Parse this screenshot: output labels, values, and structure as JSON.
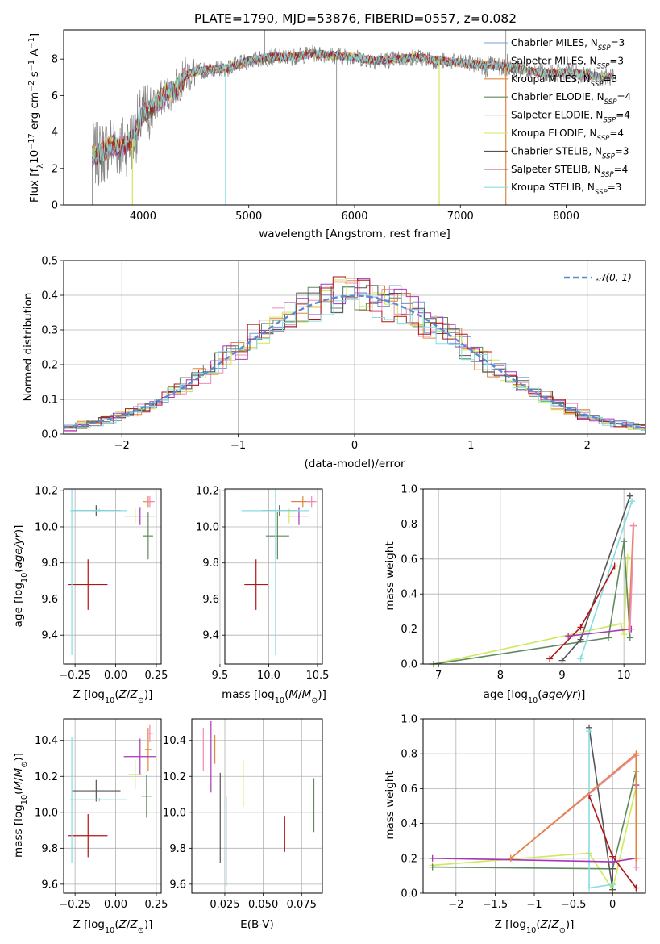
{
  "figure_title": "PLATE=1790, MJD=53876, FIBERID=0557, z=0.082",
  "legend_main": [
    {
      "label": "Chabrier MILES, N",
      "sub": "SSP",
      "tail": "=3",
      "color": "#7a9ddb"
    },
    {
      "label": "Salpeter MILES, N",
      "sub": "SSP",
      "tail": "=3",
      "color": "#f08ab6"
    },
    {
      "label": "Kroupa MILES, N",
      "sub": "SSP",
      "tail": "=3",
      "color": "#e0863a"
    },
    {
      "label": "Chabrier ELODIE, N",
      "sub": "SSP",
      "tail": "=4",
      "color": "#5e8a5e"
    },
    {
      "label": "Salpeter ELODIE, N",
      "sub": "SSP",
      "tail": "=4",
      "color": "#a637b5"
    },
    {
      "label": "Kroupa ELODIE, N",
      "sub": "SSP",
      "tail": "=4",
      "color": "#cfe85c"
    },
    {
      "label": "Chabrier STELIB, N",
      "sub": "SSP",
      "tail": "=3",
      "color": "#555555"
    },
    {
      "label": "Salpeter STELIB, N",
      "sub": "SSP",
      "tail": "=4",
      "color": "#b01515"
    },
    {
      "label": "Kroupa STELIB, N",
      "sub": "SSP",
      "tail": "=3",
      "color": "#86dde3"
    }
  ],
  "chart_data": [
    {
      "id": "spectrum",
      "type": "line",
      "title": "PLATE=1790, MJD=53876, FIBERID=0557, z=0.082",
      "xlabel": "wavelength [Angstrom, rest frame]",
      "ylabel": "Flux [f",
      "xlim": [
        3250,
        8750
      ],
      "ylim": [
        0,
        9.6
      ],
      "xticks": [
        4000,
        5000,
        6000,
        7000,
        8000
      ],
      "yticks": [
        0,
        2,
        4,
        6,
        8
      ],
      "continuum": {
        "x": [
          3520,
          3600,
          3700,
          3800,
          3900,
          4000,
          4100,
          4200,
          4300,
          4400,
          4500,
          4600,
          4800,
          5000,
          5200,
          5400,
          5600,
          5800,
          6000,
          6200,
          6400,
          6600,
          6800,
          7000,
          7200,
          7400,
          7600,
          7800,
          8000,
          8200,
          8400
        ],
        "y": [
          2.7,
          2.8,
          3.3,
          3.2,
          3.6,
          5.0,
          5.4,
          6.0,
          6.3,
          7.1,
          7.3,
          7.4,
          7.5,
          7.9,
          8.1,
          8.1,
          8.3,
          8.2,
          8.1,
          7.9,
          8.0,
          8.1,
          7.9,
          7.8,
          7.7,
          7.6,
          7.4,
          7.2,
          7.3,
          7.1,
          7.0
        ]
      }
    },
    {
      "id": "residuals",
      "type": "bar",
      "xlabel": "(data-model)/error",
      "ylabel": "Normed distribution",
      "xlim": [
        -2.5,
        2.5
      ],
      "ylim": [
        0,
        0.5
      ],
      "xticks": [
        -2,
        -1,
        0,
        1,
        2
      ],
      "yticks": [
        0.0,
        0.1,
        0.2,
        0.3,
        0.4,
        0.5
      ],
      "series": [
        {
          "name": "𝒩(0, 1)",
          "type": "gaussian",
          "mu": 0,
          "sigma": 1
        }
      ]
    },
    {
      "id": "age_vs_Z",
      "type": "scatter",
      "xlabel": "Z [log",
      "ylabel": "age  [log",
      "xlim": [
        -0.32,
        0.28
      ],
      "ylim": [
        9.24,
        10.21
      ],
      "xticks": [
        -0.25,
        0.0,
        0.25
      ],
      "yticks": [
        9.4,
        9.6,
        9.8,
        10.0,
        10.2
      ],
      "points": [
        {
          "x": 0.2,
          "y": 10.14,
          "xe": 0.03,
          "ye": 0.03,
          "c": "#e0863a"
        },
        {
          "x": 0.21,
          "y": 10.14,
          "xe": 0.03,
          "ye": 0.03,
          "c": "#f08ab6"
        },
        {
          "x": 0.15,
          "y": 10.06,
          "xe": 0.1,
          "ye": 0.05,
          "c": "#a637b5"
        },
        {
          "x": 0.12,
          "y": 10.06,
          "xe": 0.03,
          "ye": 0.04,
          "c": "#cfe85c"
        },
        {
          "x": 0.2,
          "y": 9.95,
          "xe": 0.03,
          "ye": 0.13,
          "c": "#5e8a5e"
        },
        {
          "x": -0.12,
          "y": 10.09,
          "xe": 0.15,
          "ye": 0.03,
          "c": "#555555"
        },
        {
          "x": -0.17,
          "y": 9.68,
          "xe": 0.12,
          "ye": 0.14,
          "c": "#b01515"
        },
        {
          "x": -0.27,
          "y": 10.09,
          "xe": 0.01,
          "ye": 0.8,
          "c": "#86dde3"
        },
        {
          "x": -0.1,
          "y": 10.09,
          "xe": 0.17,
          "ye": 0.01,
          "c": "#86dde3"
        }
      ]
    },
    {
      "id": "age_vs_mass",
      "type": "scatter",
      "xlabel": "mass [log",
      "ylabel": "",
      "xlim": [
        10.58,
        10.52
      ],
      "ylim": [
        9.24,
        10.21
      ],
      "xticks": [
        9.5,
        10.0,
        10.5
      ],
      "yticks": [
        9.4,
        9.6,
        9.8,
        10.0,
        10.2
      ],
      "points": [
        {
          "x": 10.35,
          "y": 10.14,
          "xe": 0.12,
          "ye": 0.03,
          "c": "#e0863a"
        },
        {
          "x": 10.44,
          "y": 10.14,
          "xe": 0.05,
          "ye": 0.03,
          "c": "#f08ab6"
        },
        {
          "x": 10.31,
          "y": 10.06,
          "xe": 0.1,
          "ye": 0.05,
          "c": "#a637b5"
        },
        {
          "x": 10.21,
          "y": 10.06,
          "xe": 0.06,
          "ye": 0.04,
          "c": "#cfe85c"
        },
        {
          "x": 10.09,
          "y": 9.95,
          "xe": 0.12,
          "ye": 0.13,
          "c": "#5e8a5e"
        },
        {
          "x": 10.11,
          "y": 10.09,
          "xe": 0.18,
          "ye": 0.03,
          "c": "#555555"
        },
        {
          "x": 9.87,
          "y": 9.68,
          "xe": 0.12,
          "ye": 0.14,
          "c": "#b01515"
        },
        {
          "x": 10.07,
          "y": 10.09,
          "xe": 0.03,
          "ye": 0.8,
          "c": "#86dde3"
        },
        {
          "x": 10.07,
          "y": 10.09,
          "xe": 0.35,
          "ye": 0.01,
          "c": "#86dde3"
        }
      ]
    },
    {
      "id": "massweight_vs_age",
      "type": "line",
      "xlabel": "age  [log",
      "ylabel": "mass weight",
      "xlim": [
        6.75,
        10.35
      ],
      "ylim": [
        0.0,
        1.0
      ],
      "xticks": [
        7,
        8,
        9,
        10
      ],
      "yticks": [
        0.0,
        0.2,
        0.4,
        0.6,
        0.8,
        1.0
      ],
      "series": [
        {
          "c": "#cfe85c",
          "x": [
            6.92,
            9.95,
            10.0,
            10.06
          ],
          "y": [
            0.0,
            0.23,
            0.17,
            0.61
          ]
        },
        {
          "c": "#5e8a5e",
          "x": [
            6.92,
            9.75,
            10.0,
            10.1
          ],
          "y": [
            0.0,
            0.15,
            0.7,
            0.15
          ]
        },
        {
          "c": "#555555",
          "x": [
            9.0,
            9.3,
            10.1
          ],
          "y": [
            0.02,
            0.14,
            0.96
          ]
        },
        {
          "c": "#86dde3",
          "x": [
            9.3,
            10.13
          ],
          "y": [
            0.03,
            0.93
          ]
        },
        {
          "c": "#b01515",
          "x": [
            8.8,
            9.3,
            9.85
          ],
          "y": [
            0.03,
            0.21,
            0.56
          ]
        },
        {
          "c": "#a637b5",
          "x": [
            9.1,
            10.12
          ],
          "y": [
            0.16,
            0.2
          ]
        },
        {
          "c": "#e0863a",
          "x": [
            10.08,
            10.15
          ],
          "y": [
            0.2,
            0.79
          ]
        },
        {
          "c": "#f08ab6",
          "x": [
            10.1,
            10.16
          ],
          "y": [
            0.2,
            0.79
          ]
        }
      ]
    },
    {
      "id": "mass_vs_Z",
      "type": "scatter",
      "xlabel": "Z [log",
      "ylabel": "mass [log",
      "xlim": [
        -0.32,
        0.28
      ],
      "ylim": [
        9.55,
        10.52
      ],
      "xticks": [
        -0.25,
        0.0,
        0.25
      ],
      "yticks": [
        9.6,
        9.8,
        10.0,
        10.2,
        10.4
      ],
      "points": [
        {
          "x": 0.2,
          "y": 10.35,
          "xe": 0.02,
          "ye": 0.12,
          "c": "#e0863a"
        },
        {
          "x": 0.21,
          "y": 10.44,
          "xe": 0.02,
          "ye": 0.05,
          "c": "#f08ab6"
        },
        {
          "x": 0.15,
          "y": 10.31,
          "xe": 0.1,
          "ye": 0.1,
          "c": "#a637b5"
        },
        {
          "x": 0.12,
          "y": 10.21,
          "xe": 0.04,
          "ye": 0.08,
          "c": "#cfe85c"
        },
        {
          "x": 0.19,
          "y": 10.09,
          "xe": 0.03,
          "ye": 0.12,
          "c": "#5e8a5e"
        },
        {
          "x": -0.12,
          "y": 10.12,
          "xe": 0.15,
          "ye": 0.06,
          "c": "#555555"
        },
        {
          "x": -0.17,
          "y": 9.87,
          "xe": 0.12,
          "ye": 0.12,
          "c": "#b01515"
        },
        {
          "x": -0.27,
          "y": 10.07,
          "xe": 0.01,
          "ye": 0.35,
          "c": "#86dde3"
        },
        {
          "x": -0.1,
          "y": 10.07,
          "xe": 0.17,
          "ye": 0.01,
          "c": "#86dde3"
        }
      ]
    },
    {
      "id": "mass_vs_ebv",
      "type": "scatter",
      "xlabel": "E(B-V)",
      "ylabel": "",
      "xlim": [
        0.0035,
        0.0885
      ],
      "ylim": [
        9.55,
        10.52
      ],
      "xticks": [
        0.025,
        0.05,
        0.075
      ],
      "xticklabels": [
        "0.025",
        "0.050",
        "0.075"
      ],
      "yticks": [
        9.6,
        9.8,
        10.0,
        10.2,
        10.4
      ],
      "points": [
        {
          "x": 0.011,
          "y": 10.35,
          "ye": 0.12,
          "c": "#f08ab6"
        },
        {
          "x": 0.016,
          "y": 10.31,
          "ye": 0.2,
          "c": "#a637b5"
        },
        {
          "x": 0.0185,
          "y": 10.35,
          "ye": 0.08,
          "c": "#e0863a"
        },
        {
          "x": 0.022,
          "y": 9.97,
          "ye": 0.25,
          "c": "#555555"
        },
        {
          "x": 0.026,
          "y": 9.84,
          "ye": 0.25,
          "c": "#86dde3"
        },
        {
          "x": 0.037,
          "y": 10.16,
          "ye": 0.13,
          "c": "#cfe85c"
        },
        {
          "x": 0.064,
          "y": 9.88,
          "ye": 0.1,
          "c": "#b01515"
        },
        {
          "x": 0.083,
          "y": 10.04,
          "ye": 0.15,
          "c": "#5e8a5e"
        }
      ]
    },
    {
      "id": "massweight_vs_Z",
      "type": "line",
      "xlabel": "Z [log",
      "ylabel": "mass weight",
      "xlim": [
        -2.42,
        0.42
      ],
      "ylim": [
        0.0,
        1.0
      ],
      "xticks": [
        -2.0,
        -1.5,
        -1.0,
        -0.5,
        0.0
      ],
      "yticks": [
        0.0,
        0.2,
        0.4,
        0.6,
        0.8,
        1.0
      ],
      "series": [
        {
          "c": "#cfe85c",
          "x": [
            -2.3,
            -0.3,
            0.0,
            0.3
          ],
          "y": [
            0.16,
            0.23,
            0.02,
            0.61
          ]
        },
        {
          "c": "#5e8a5e",
          "x": [
            -2.3,
            0.0,
            0.3,
            0.3
          ],
          "y": [
            0.15,
            0.14,
            0.7,
            0.15
          ]
        },
        {
          "c": "#555555",
          "x": [
            -0.3,
            0.0,
            0.0
          ],
          "y": [
            0.95,
            0.02,
            0.14
          ]
        },
        {
          "c": "#86dde3",
          "x": [
            -0.3,
            -0.3,
            0.0
          ],
          "y": [
            0.93,
            0.03,
            0.05
          ]
        },
        {
          "c": "#b01515",
          "x": [
            -0.3,
            0.0,
            0.3
          ],
          "y": [
            0.56,
            0.21,
            0.03
          ]
        },
        {
          "c": "#a637b5",
          "x": [
            -2.3,
            0.0,
            0.3,
            0.3
          ],
          "y": [
            0.2,
            0.18,
            0.2,
            0.62
          ]
        },
        {
          "c": "#f08ab6",
          "x": [
            -1.3,
            0.3,
            0.3
          ],
          "y": [
            0.2,
            0.79,
            0.15
          ]
        },
        {
          "c": "#e0863a",
          "x": [
            -1.3,
            0.3,
            0.3
          ],
          "y": [
            0.2,
            0.8,
            0.2
          ]
        }
      ]
    }
  ]
}
